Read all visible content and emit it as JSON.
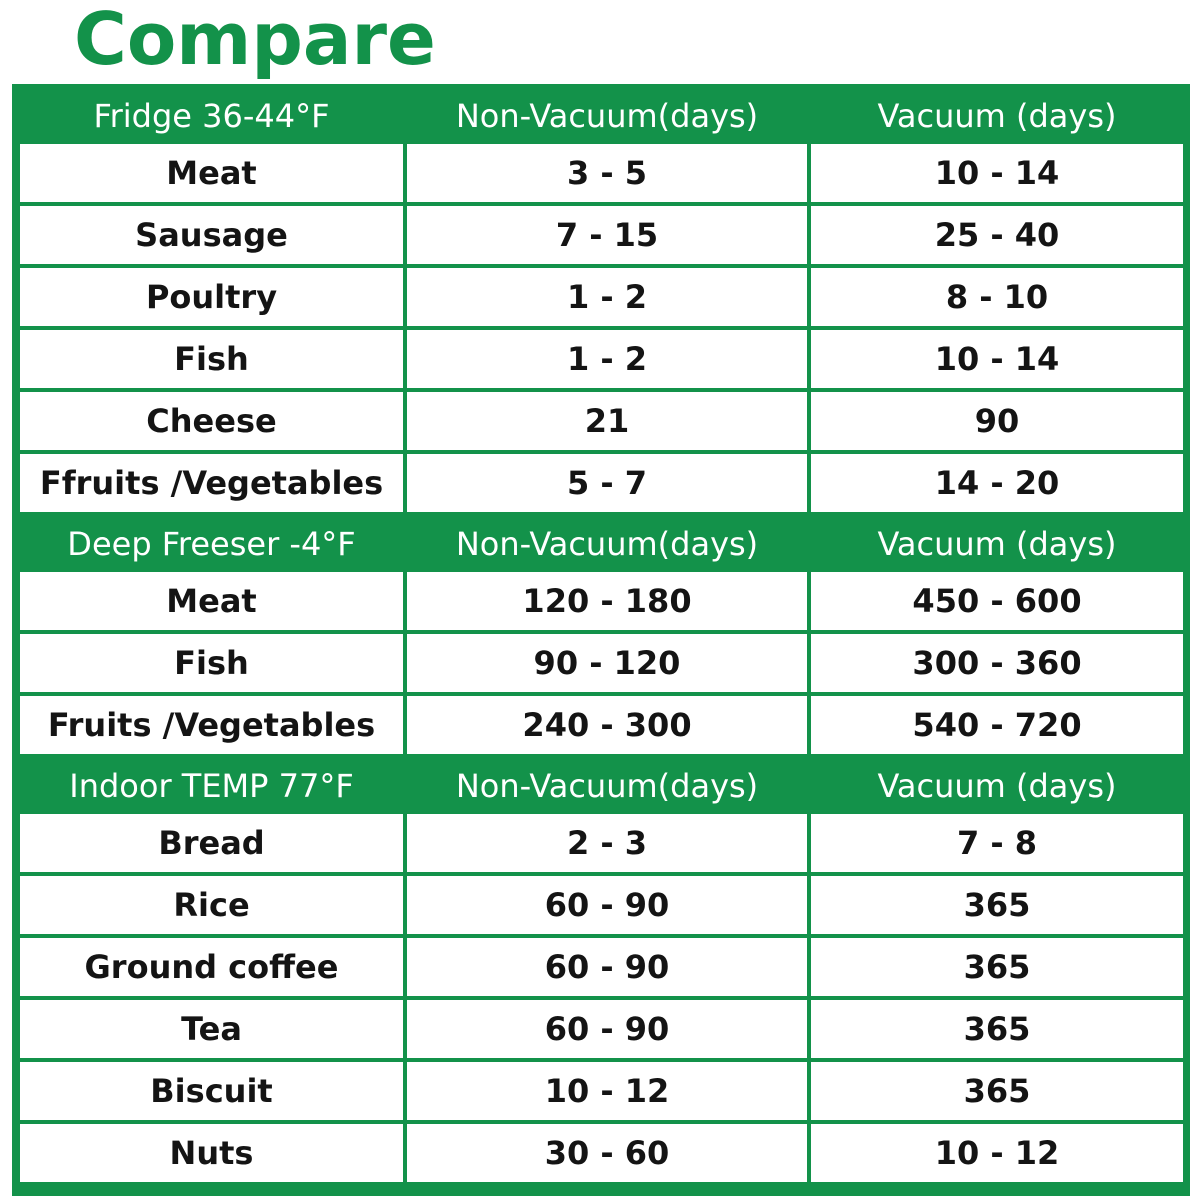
{
  "title": "Compare",
  "colors": {
    "accent": "#13924a",
    "cell_bg": "#ffffff",
    "text": "#141414",
    "header_text": "#ffffff"
  },
  "sections": [
    {
      "headers": [
        "Fridge 36-44°F",
        "Non-Vacuum(days)",
        "Vacuum (days)"
      ],
      "rows": [
        [
          "Meat",
          "3 - 5",
          "10 - 14"
        ],
        [
          "Sausage",
          "7 - 15",
          "25 - 40"
        ],
        [
          "Poultry",
          "1 - 2",
          "8 - 10"
        ],
        [
          "Fish",
          "1 - 2",
          "10 - 14"
        ],
        [
          "Cheese",
          "21",
          "90"
        ],
        [
          "Ffruits /Vegetables",
          "5 - 7",
          "14 - 20"
        ]
      ]
    },
    {
      "headers": [
        "Deep Freeser -4°F",
        "Non-Vacuum(days)",
        "Vacuum (days)"
      ],
      "rows": [
        [
          "Meat",
          "120 - 180",
          "450 - 600"
        ],
        [
          "Fish",
          "90 - 120",
          "300 - 360"
        ],
        [
          "Fruits /Vegetables",
          "240 - 300",
          "540 - 720"
        ]
      ]
    },
    {
      "headers": [
        "Indoor TEMP 77°F",
        "Non-Vacuum(days)",
        "Vacuum (days)"
      ],
      "rows": [
        [
          "Bread",
          "2 - 3",
          "7 - 8"
        ],
        [
          "Rice",
          "60 - 90",
          "365"
        ],
        [
          "Ground coffee",
          "60 - 90",
          "365"
        ],
        [
          "Tea",
          "60 - 90",
          "365"
        ],
        [
          "Biscuit",
          "10 - 12",
          "365"
        ],
        [
          "Nuts",
          "30 - 60",
          "10 - 12"
        ]
      ]
    }
  ]
}
